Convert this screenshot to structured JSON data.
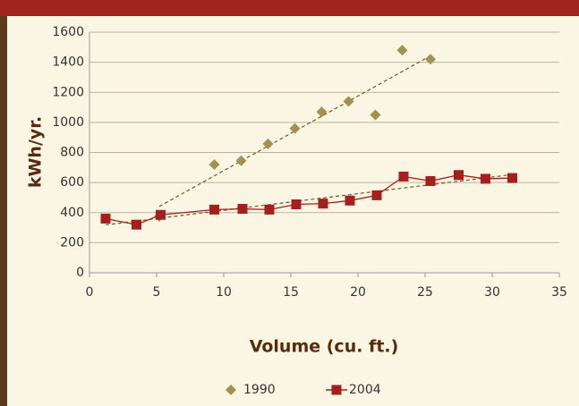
{
  "chart_data": {
    "type": "scatter",
    "xlabel": "Volume (cu. ft.)",
    "ylabel": "kWh/yr.",
    "xlim": [
      0,
      35
    ],
    "xticks": [
      0,
      5,
      10,
      15,
      20,
      25,
      30,
      35
    ],
    "ylim": [
      0,
      1600
    ],
    "yticks": [
      0,
      200,
      400,
      600,
      800,
      1000,
      1200,
      1400,
      1600
    ],
    "grid": true,
    "trendline": true,
    "legend": "bottom",
    "series": [
      {
        "name": "1990",
        "color": "#a09250",
        "marker": "diamond",
        "connect": false,
        "x": [
          5.2,
          9.3,
          11.3,
          13.3,
          15.3,
          17.3,
          19.3,
          21.3,
          23.3,
          25.4
        ],
        "values": [
          375,
          720,
          745,
          857,
          960,
          1070,
          1140,
          1050,
          1480,
          1420
        ]
      },
      {
        "name": "2004",
        "color": "#a3201e",
        "marker": "square",
        "connect": true,
        "x": [
          1.2,
          3.5,
          5.3,
          9.3,
          11.4,
          13.4,
          15.4,
          17.4,
          19.4,
          21.4,
          23.4,
          25.4,
          27.5,
          29.5,
          31.5
        ],
        "values": [
          360,
          320,
          385,
          420,
          425,
          420,
          455,
          460,
          480,
          515,
          640,
          610,
          650,
          625,
          630
        ]
      }
    ]
  }
}
